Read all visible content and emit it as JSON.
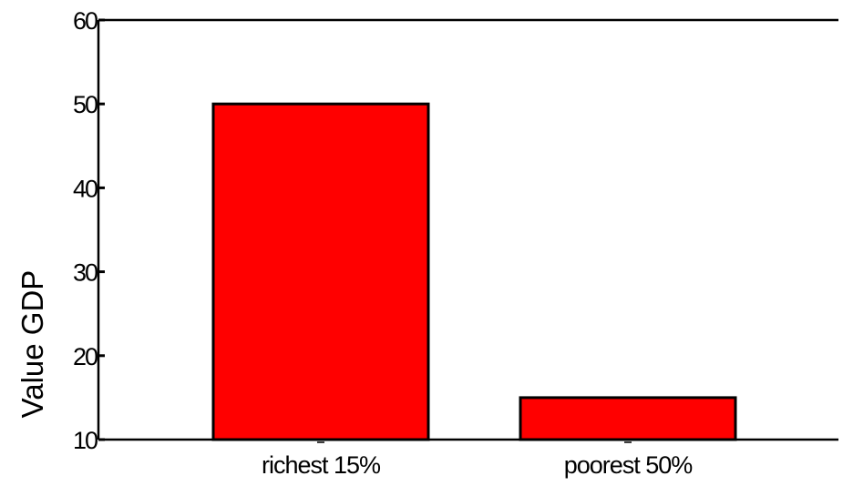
{
  "chart_data": {
    "type": "bar",
    "categories": [
      "richest 15%",
      "poorest 50%"
    ],
    "values": [
      50,
      15
    ],
    "ylabel": "Value GDP",
    "xlabel": "",
    "ylim": [
      10,
      60
    ],
    "yticks": [
      10,
      20,
      30,
      40,
      50,
      60
    ],
    "grid": false,
    "bar_color": "#ff0000",
    "bar_edge_color": "#000000"
  }
}
